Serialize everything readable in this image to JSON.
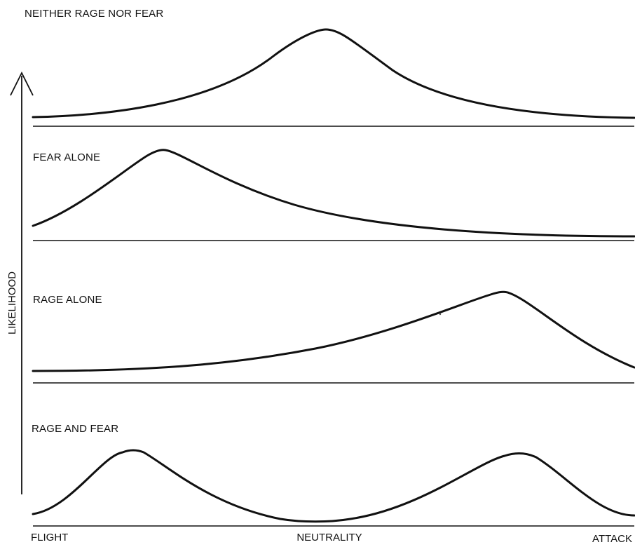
{
  "diagram": {
    "y_axis_label": "LIKELIHOOD",
    "x_axis_labels": {
      "left": "FLIGHT",
      "center": "NEUTRALITY",
      "right": "ATTACK"
    },
    "panels": [
      {
        "id": "neither",
        "label": "NEITHER RAGE NOR FEAR"
      },
      {
        "id": "fear",
        "label": "FEAR ALONE"
      },
      {
        "id": "rage",
        "label": "RAGE ALONE"
      },
      {
        "id": "both",
        "label": "RAGE AND FEAR"
      }
    ],
    "colors": {
      "ink": "#111111",
      "background": "#ffffff"
    }
  }
}
